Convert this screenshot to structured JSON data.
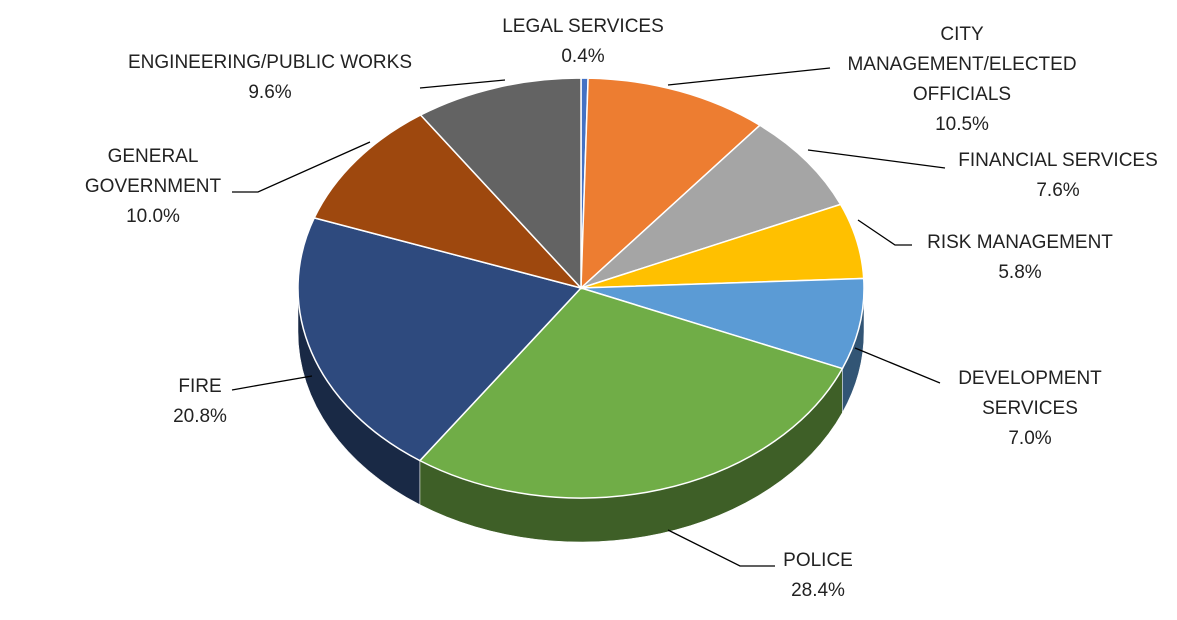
{
  "chart_data": {
    "type": "pie",
    "categories": [
      "LEGAL SERVICES",
      "CITY MANAGEMENT/ELECTED OFFICIALS",
      "FINANCIAL SERVICES",
      "RISK MANAGEMENT",
      "DEVELOPMENT SERVICES",
      "POLICE",
      "FIRE",
      "GENERAL GOVERNMENT",
      "ENGINEERING/PUBLIC WORKS"
    ],
    "values": [
      0.4,
      10.5,
      7.6,
      5.8,
      7.0,
      28.4,
      20.8,
      10.0,
      9.6
    ],
    "value_labels": [
      "0.4%",
      "10.5%",
      "7.6%",
      "5.8%",
      "7.0%",
      "28.4%",
      "20.8%",
      "10.0%",
      "9.6%"
    ],
    "colors": [
      "#4472c4",
      "#ed7d31",
      "#a5a5a5",
      "#ffc000",
      "#5b9bd5",
      "#70ad47",
      "#2e4a7e",
      "#9e480e",
      "#636363"
    ]
  }
}
